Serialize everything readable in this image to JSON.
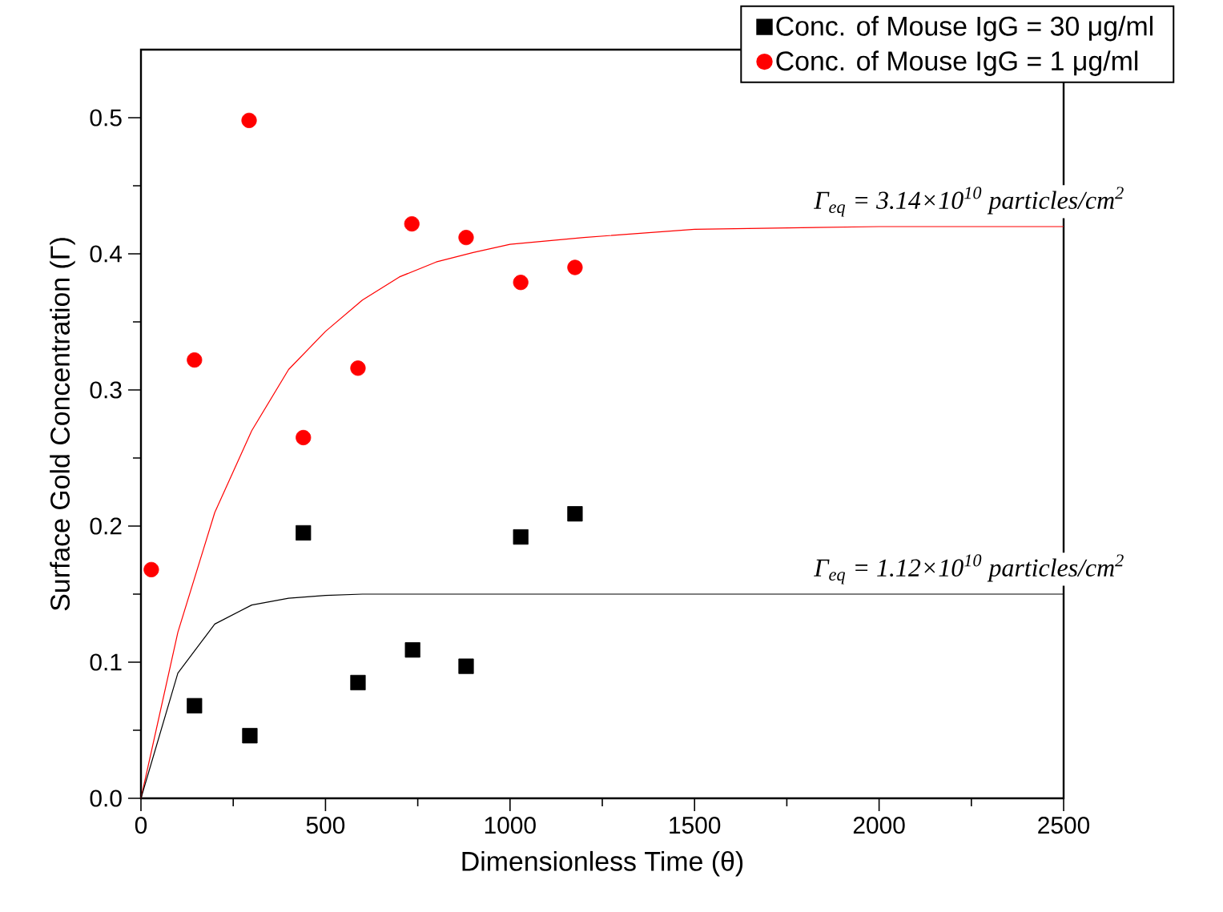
{
  "chart_data": {
    "type": "scatter",
    "xlabel": "Dimensionless Time (θ)",
    "ylabel": "Surface Gold Concentration (Γ)",
    "xlim": [
      0,
      2500
    ],
    "ylim": [
      0,
      0.55
    ],
    "xticks": [
      0,
      500,
      1000,
      1500,
      2000,
      2500
    ],
    "yticks": [
      {
        "value": 0,
        "label": "0.0"
      },
      0.1,
      0.2,
      0.3,
      0.4,
      0.5
    ],
    "legend": "top right",
    "series": [
      {
        "name": "Conc. of Mouse IgG = 30 μg/ml",
        "marker": "square",
        "color": "#000000",
        "x": [
          145,
          295,
          440,
          588,
          736,
          881,
          1029,
          1176
        ],
        "values": [
          0.068,
          0.046,
          0.195,
          0.085,
          0.109,
          0.097,
          0.192,
          0.209
        ]
      },
      {
        "name": "Conc. of Mouse IgG = 1 μg/ml",
        "marker": "circle",
        "color": "#ff0000",
        "x": [
          28,
          145,
          293,
          440,
          588,
          734,
          881,
          1029,
          1176
        ],
        "values": [
          0.168,
          0.322,
          0.498,
          0.265,
          0.316,
          0.422,
          0.412,
          0.379,
          0.39
        ]
      },
      {
        "type": "line",
        "marker": "none",
        "color": "#ff0000",
        "x": [
          0,
          100,
          200,
          300,
          400,
          500,
          600,
          700,
          800,
          900,
          1000,
          1200,
          1500,
          2000,
          2500
        ],
        "values": [
          0,
          0.122,
          0.21,
          0.27,
          0.315,
          0.343,
          0.366,
          0.383,
          0.394,
          0.401,
          0.407,
          0.412,
          0.418,
          0.42,
          0.42
        ]
      },
      {
        "type": "line",
        "marker": "none",
        "color": "#000000",
        "x": [
          0,
          100,
          200,
          300,
          400,
          500,
          600,
          2500
        ],
        "values": [
          0,
          0.092,
          0.128,
          0.142,
          0.147,
          0.149,
          0.15,
          0.15
        ]
      }
    ],
    "annotations": [
      {
        "text": "Γ$_{eq}$ = 3.14×10$^{10}$ particles/cm$^{2}$",
        "x": 2500,
        "y": 0.42
      },
      {
        "text": "Γ$_{eq}$ = 1.12×10$^{10}$ particles/cm$^{2}$",
        "x": 2500,
        "y": 0.15
      }
    ]
  }
}
